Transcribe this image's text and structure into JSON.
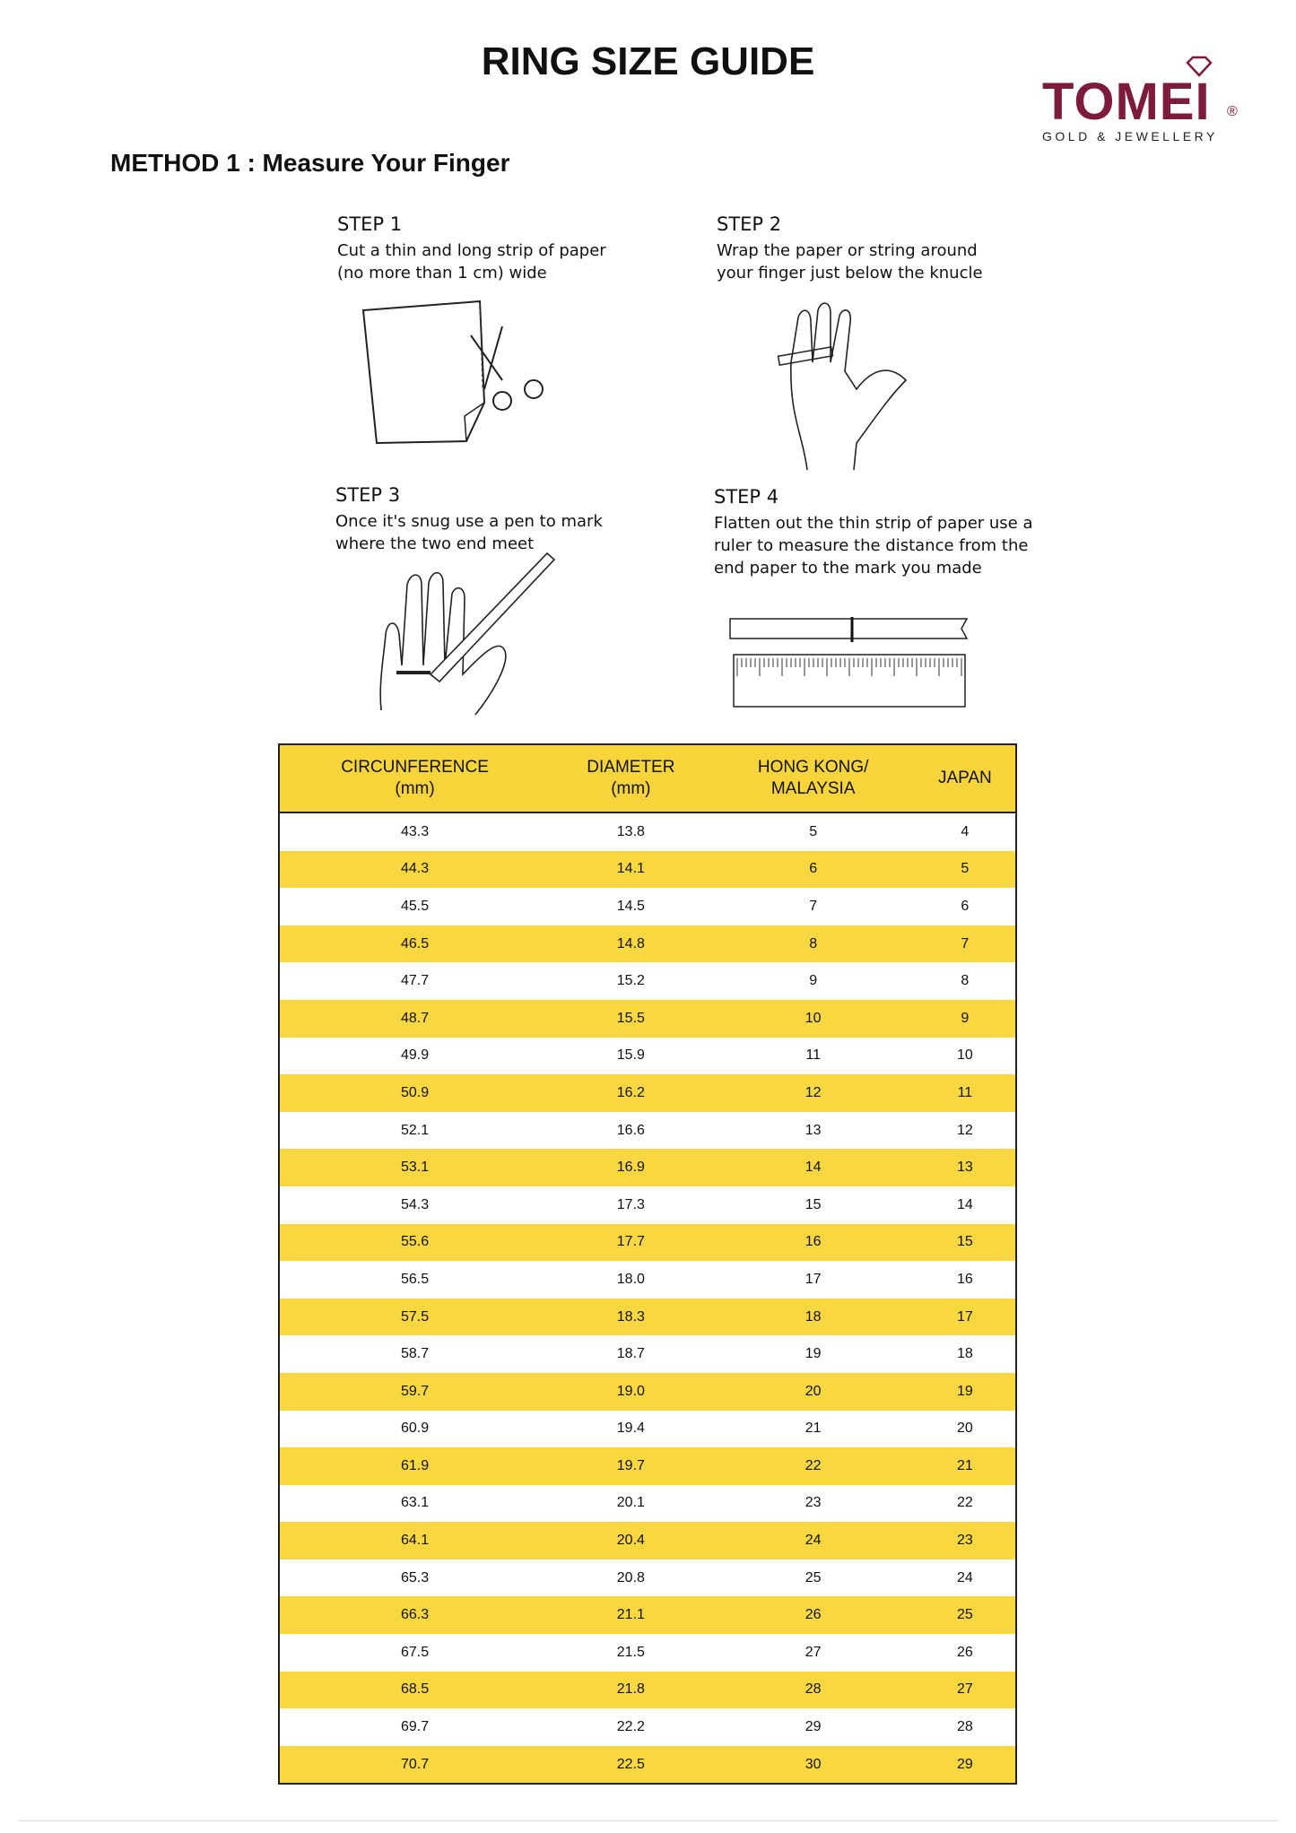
{
  "title": "RING SIZE GUIDE",
  "logo": {
    "name": "TOMEI",
    "tagline": "GOLD & JEWELLERY",
    "registered": "®",
    "brand_color": "#7e1a3c"
  },
  "method": "METHOD 1 : Measure Your Finger",
  "steps": [
    {
      "label": "STEP 1",
      "text": "Cut a thin and long strip of paper (no more than 1 cm) wide"
    },
    {
      "label": "STEP 2",
      "text": "Wrap the paper or string around your finger just below the knucle"
    },
    {
      "label": "STEP 3",
      "text": "Once it's snug use a pen to mark where the two end meet"
    },
    {
      "label": "STEP 4",
      "text": "Flatten out the thin strip of paper use a ruler to measure the distance from the end paper to the mark you made"
    }
  ],
  "table": {
    "header_color": "#f7d43a",
    "headers": [
      [
        "CIRCUNFERENCE",
        "(mm)"
      ],
      [
        "DIAMETER",
        "(mm)"
      ],
      [
        "HONG KONG/",
        "MALAYSIA"
      ],
      [
        "JAPAN",
        ""
      ]
    ],
    "rows": [
      [
        "43.3",
        "13.8",
        "5",
        "4"
      ],
      [
        "44.3",
        "14.1",
        "6",
        "5"
      ],
      [
        "45.5",
        "14.5",
        "7",
        "6"
      ],
      [
        "46.5",
        "14.8",
        "8",
        "7"
      ],
      [
        "47.7",
        "15.2",
        "9",
        "8"
      ],
      [
        "48.7",
        "15.5",
        "10",
        "9"
      ],
      [
        "49.9",
        "15.9",
        "11",
        "10"
      ],
      [
        "50.9",
        "16.2",
        "12",
        "11"
      ],
      [
        "52.1",
        "16.6",
        "13",
        "12"
      ],
      [
        "53.1",
        "16.9",
        "14",
        "13"
      ],
      [
        "54.3",
        "17.3",
        "15",
        "14"
      ],
      [
        "55.6",
        "17.7",
        "16",
        "15"
      ],
      [
        "56.5",
        "18.0",
        "17",
        "16"
      ],
      [
        "57.5",
        "18.3",
        "18",
        "17"
      ],
      [
        "58.7",
        "18.7",
        "19",
        "18"
      ],
      [
        "59.7",
        "19.0",
        "20",
        "19"
      ],
      [
        "60.9",
        "19.4",
        "21",
        "20"
      ],
      [
        "61.9",
        "19.7",
        "22",
        "21"
      ],
      [
        "63.1",
        "20.1",
        "23",
        "22"
      ],
      [
        "64.1",
        "20.4",
        "24",
        "23"
      ],
      [
        "65.3",
        "20.8",
        "25",
        "24"
      ],
      [
        "66.3",
        "21.1",
        "26",
        "25"
      ],
      [
        "67.5",
        "21.5",
        "27",
        "26"
      ],
      [
        "68.5",
        "21.8",
        "28",
        "27"
      ],
      [
        "69.7",
        "22.2",
        "29",
        "28"
      ],
      [
        "70.7",
        "22.5",
        "30",
        "29"
      ]
    ]
  }
}
